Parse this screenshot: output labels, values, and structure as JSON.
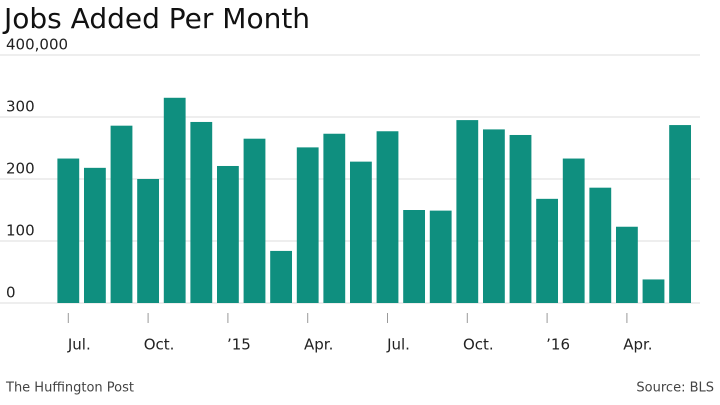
{
  "chart_data": {
    "type": "bar",
    "title": "Jobs Added Per Month",
    "categories": [
      "Jul.",
      null,
      null,
      "Oct.",
      null,
      null,
      "’15",
      null,
      null,
      "Apr.",
      null,
      null,
      "Jul.",
      null,
      null,
      "Oct.",
      null,
      null,
      "’16",
      null,
      null,
      "Apr.",
      null,
      null
    ],
    "values": [
      233,
      218,
      286,
      200,
      331,
      292,
      221,
      265,
      84,
      251,
      273,
      228,
      277,
      150,
      149,
      295,
      280,
      271,
      168,
      233,
      186,
      123,
      38,
      287
    ],
    "color": "#0f8f7f",
    "ylim": [
      0,
      400
    ],
    "yticks": [
      0,
      100,
      200,
      300,
      {
        "value": 400,
        "label": "400,000"
      }
    ],
    "grid": true,
    "credit": "The Huffington Post",
    "source": "Source: BLS"
  }
}
